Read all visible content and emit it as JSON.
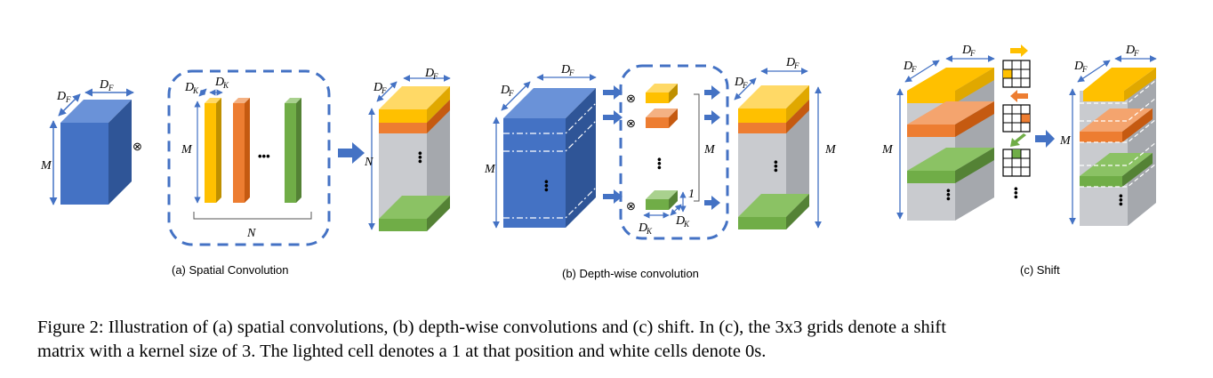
{
  "panels": {
    "a": {
      "title": "(a) Spatial Convolution"
    },
    "b": {
      "title": "(b) Depth-wise convolution"
    },
    "c": {
      "title": "(c) Shift"
    }
  },
  "symbols": {
    "D": "D",
    "F": "F",
    "K": "K",
    "M": "M",
    "N": "N",
    "one": "1",
    "otimes": "⊗",
    "dots": "•••"
  },
  "colors": {
    "blue_front": "#4472C4",
    "blue_top": "#6A92D8",
    "blue_side": "#2F5597",
    "yellow": "#FFC000",
    "orange": "#ED7D31",
    "green": "#70AD47",
    "gray_front": "#C9CBCF",
    "gray_side": "#A5A8AD",
    "dash_blue": "#4472C4"
  },
  "caption": {
    "line1": "Figure 2: Illustration of (a) spatial convolutions, (b) depth-wise convolutions and (c) shift. In (c), the 3x3 grids denote a shift",
    "line2": "matrix with a kernel size of 3. The lighted cell denotes a 1 at that position and white cells denote 0s."
  }
}
